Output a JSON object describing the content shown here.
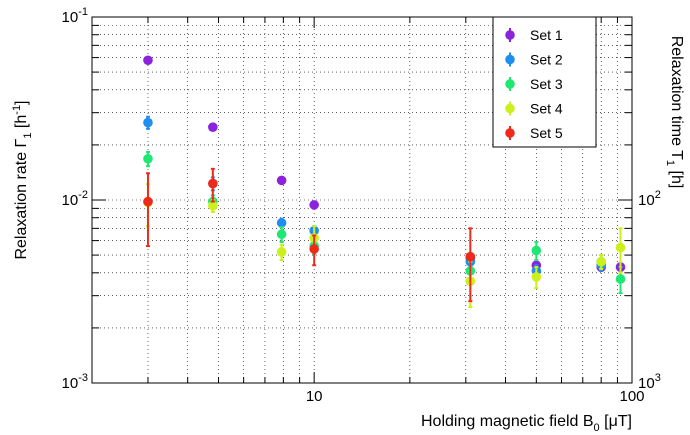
{
  "chart_data": {
    "type": "scatter",
    "x_scale": "log",
    "y_scale": "log",
    "xlim": [
      2.0,
      100
    ],
    "ylim": [
      0.001,
      0.1
    ],
    "grid": true,
    "legend_position": "top-right",
    "xlabel": {
      "main": "Holding magnetic field B",
      "sub": "0",
      "unit": " [μT]"
    },
    "ylabel": {
      "main": "Relaxation rate Γ",
      "sub": "1",
      "unit_pre": " [h",
      "sup": "-1",
      "unit_post": "]"
    },
    "y2label": {
      "main": "Relaxation time T",
      "sub": "1",
      "unit": " [h]"
    },
    "x_tick_labels": [
      {
        "value": 10,
        "text": "10"
      },
      {
        "value": 100,
        "text": "100"
      }
    ],
    "y_tick_labels": [
      {
        "value": 0.001,
        "base": "10",
        "exp": "-3"
      },
      {
        "value": 0.01,
        "base": "10",
        "exp": "-2"
      },
      {
        "value": 0.1,
        "base": "10",
        "exp": "-1"
      }
    ],
    "y2_tick_labels": [
      {
        "time": 100,
        "base": "10",
        "exp": "2"
      },
      {
        "time": 1000,
        "base": "10",
        "exp": "3"
      }
    ],
    "series": [
      {
        "name": "Set 1",
        "color": "#8b22dd",
        "points": [
          {
            "x": 3.0,
            "y": 0.058,
            "err": 0.002
          },
          {
            "x": 4.8,
            "y": 0.025,
            "err": 0.001
          },
          {
            "x": 7.9,
            "y": 0.0128,
            "err": 0.0005
          },
          {
            "x": 10.0,
            "y": 0.0094,
            "err": 0.0004
          },
          {
            "x": 31.0,
            "y": 0.0048,
            "err": 0.0002
          },
          {
            "x": 50.0,
            "y": 0.0044,
            "err": 0.0002
          },
          {
            "x": 80.0,
            "y": 0.0043,
            "err": 0.0002
          },
          {
            "x": 92.0,
            "y": 0.0043,
            "err": 0.0002
          }
        ]
      },
      {
        "name": "Set 2",
        "color": "#1e8ff0",
        "points": [
          {
            "x": 3.0,
            "y": 0.0265,
            "err": 0.002
          },
          {
            "x": 4.8,
            "y": 0.0123,
            "err": 0.001
          },
          {
            "x": 7.9,
            "y": 0.0075,
            "err": 0.0004
          },
          {
            "x": 10.0,
            "y": 0.0068,
            "err": 0.0004
          },
          {
            "x": 31.0,
            "y": 0.0046,
            "err": 0.0003
          },
          {
            "x": 50.0,
            "y": 0.0041,
            "err": 0.0003
          },
          {
            "x": 80.0,
            "y": 0.0044,
            "err": 0.0003
          }
        ]
      },
      {
        "name": "Set 3",
        "color": "#1ee872",
        "points": [
          {
            "x": 3.0,
            "y": 0.0168,
            "err": 0.0015
          },
          {
            "x": 4.8,
            "y": 0.0098,
            "err": 0.0008
          },
          {
            "x": 7.9,
            "y": 0.0065,
            "err": 0.0006
          },
          {
            "x": 10.0,
            "y": 0.0056,
            "err": 0.0005
          },
          {
            "x": 31.0,
            "y": 0.0041,
            "err": 0.0005
          },
          {
            "x": 50.0,
            "y": 0.0053,
            "err": 0.0006
          },
          {
            "x": 80.0,
            "y": 0.0046,
            "err": 0.0004
          },
          {
            "x": 92.0,
            "y": 0.0037,
            "err": 0.0006
          }
        ]
      },
      {
        "name": "Set 4",
        "color": "#ccf01a",
        "points": [
          {
            "x": 3.0,
            "y": 0.0097,
            "err": 0.0025
          },
          {
            "x": 4.8,
            "y": 0.0093,
            "err": 0.0007
          },
          {
            "x": 7.9,
            "y": 0.0052,
            "err": 0.0005
          },
          {
            "x": 10.0,
            "y": 0.0062,
            "err": 0.001
          },
          {
            "x": 31.0,
            "y": 0.0036,
            "err": 0.001
          },
          {
            "x": 50.0,
            "y": 0.0038,
            "err": 0.0005
          },
          {
            "x": 80.0,
            "y": 0.0046,
            "err": 0.0004
          },
          {
            "x": 92.0,
            "y": 0.0055,
            "err": 0.0015
          }
        ]
      },
      {
        "name": "Set 5",
        "color": "#f02a1a",
        "points": [
          {
            "x": 3.0,
            "y": 0.0098,
            "err": 0.0042
          },
          {
            "x": 4.8,
            "y": 0.0123,
            "err": 0.0025
          },
          {
            "x": 10.0,
            "y": 0.0054,
            "err": 0.001
          },
          {
            "x": 31.0,
            "y": 0.0049,
            "err": 0.0021
          }
        ]
      }
    ]
  }
}
